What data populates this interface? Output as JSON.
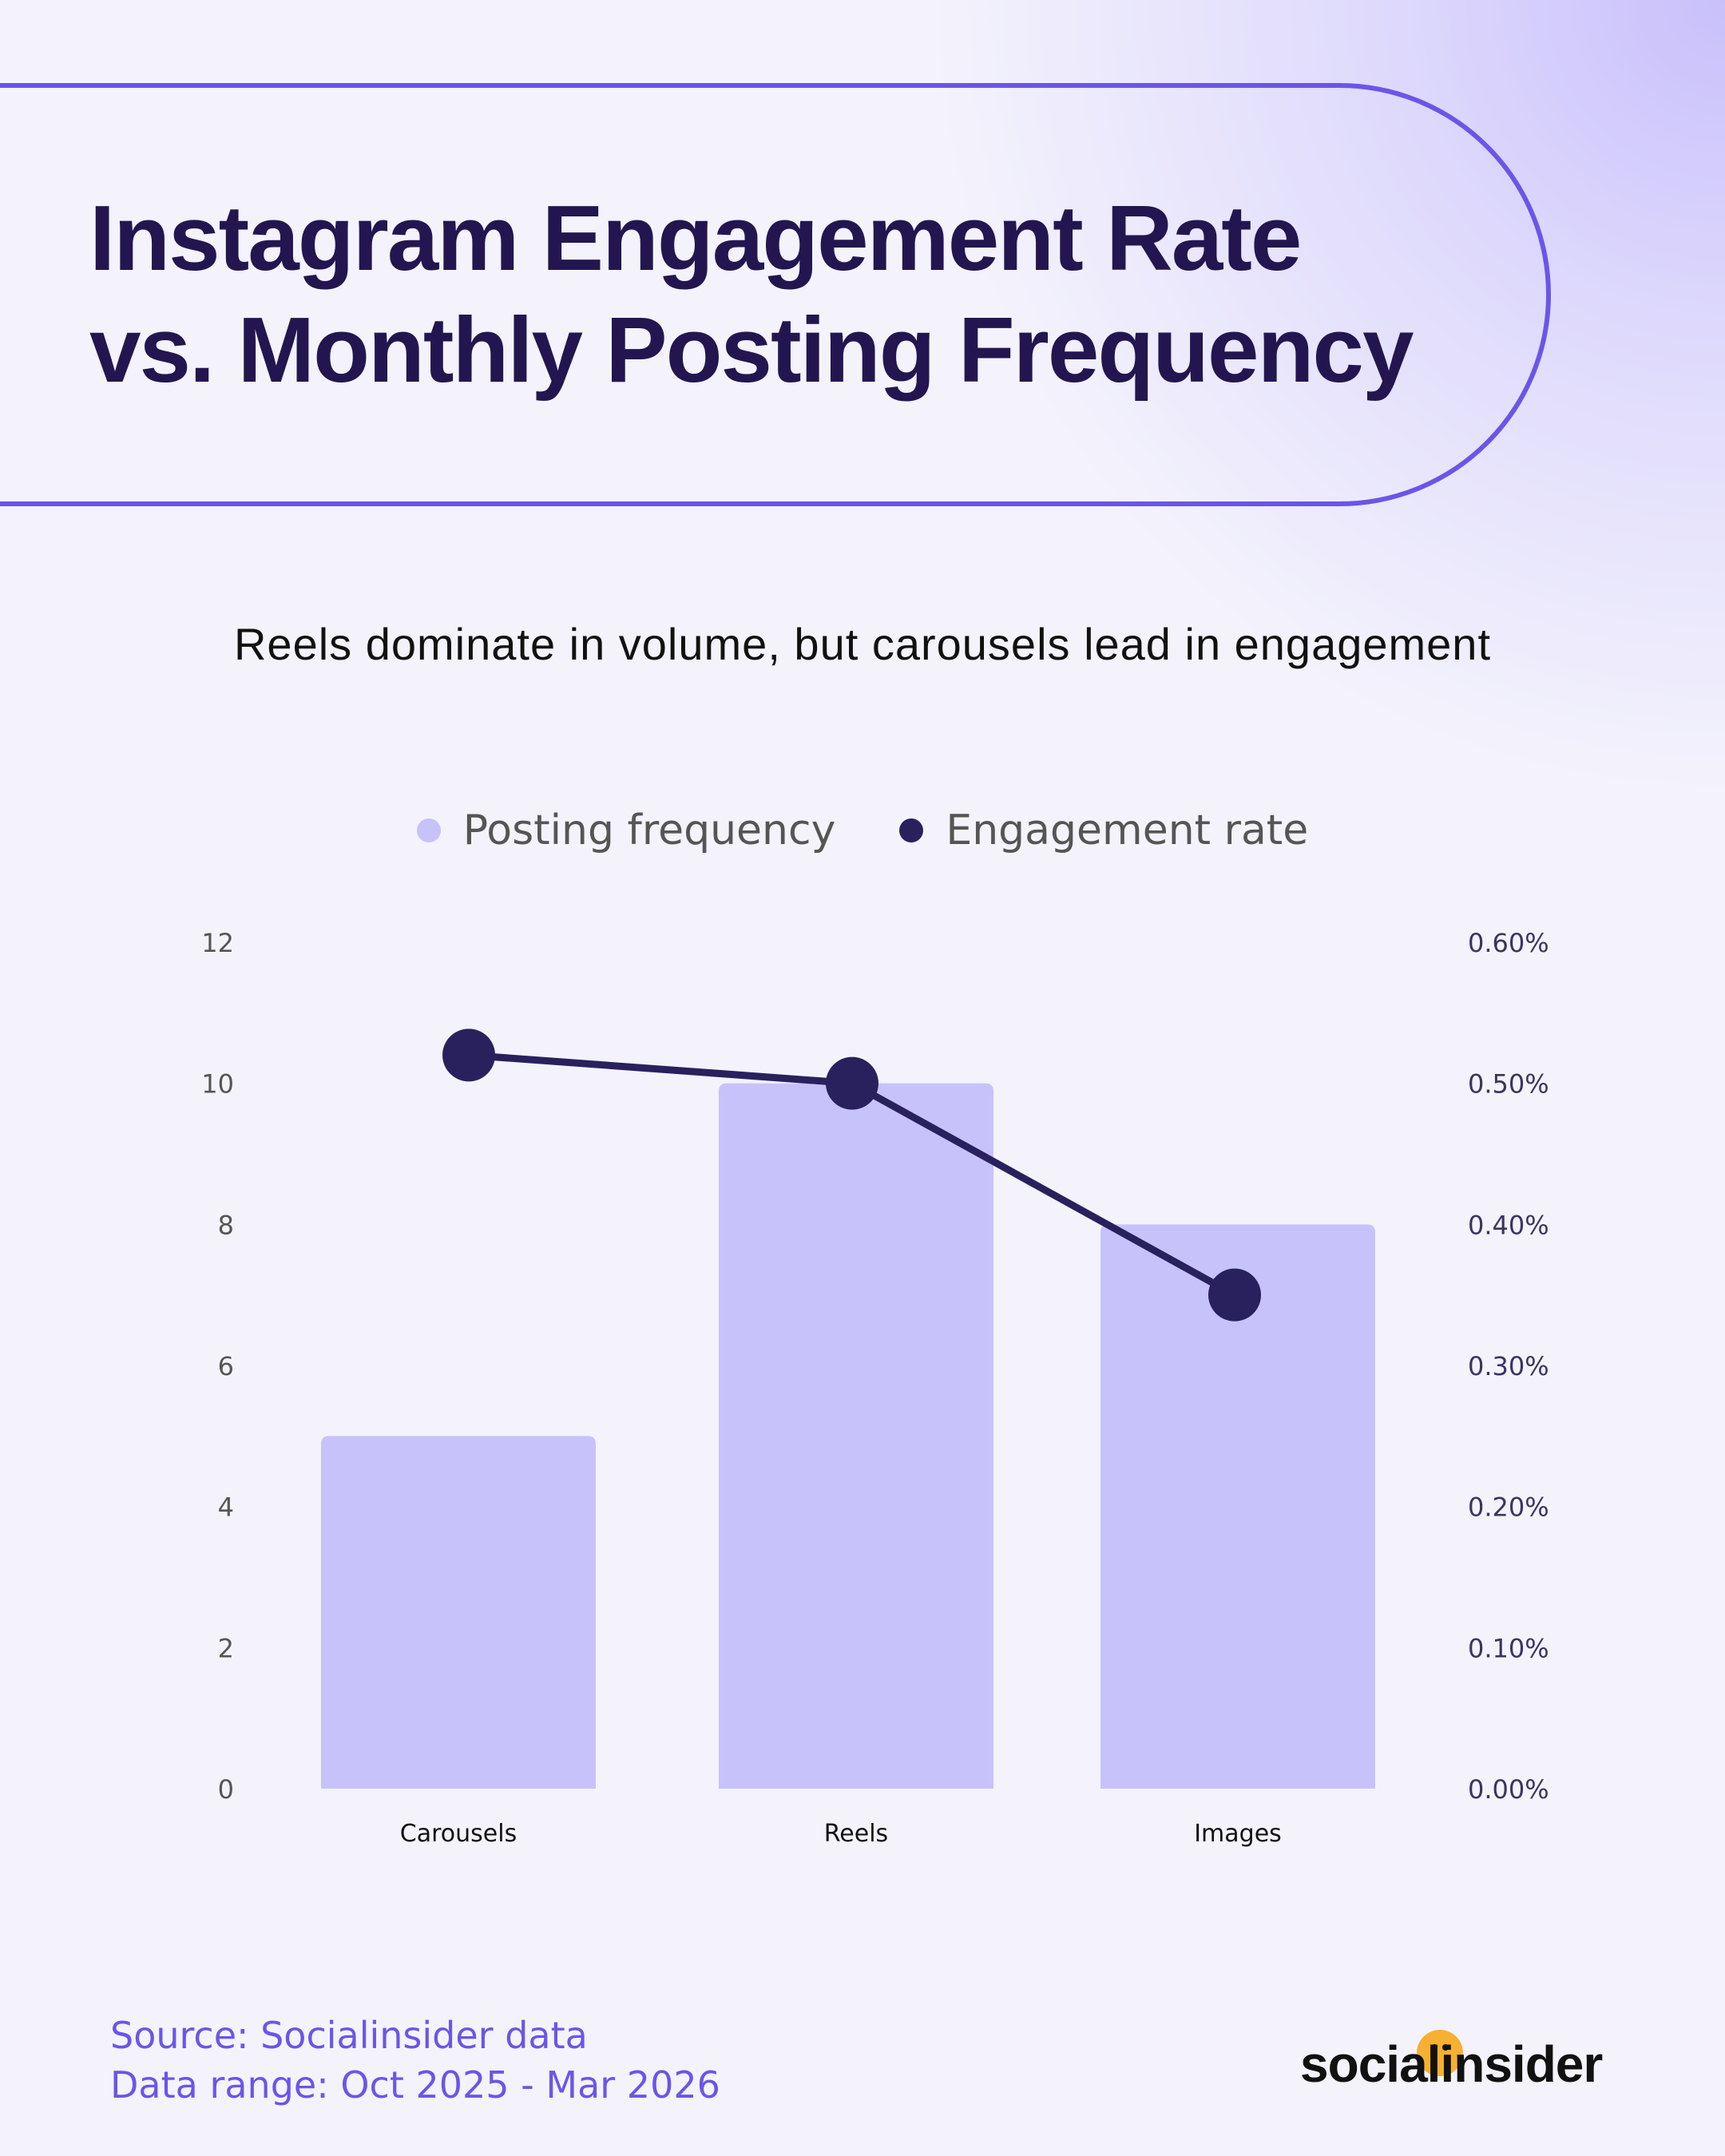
{
  "header": {
    "title_line1": "Instagram Engagement Rate",
    "title_line2": "vs. Monthly Posting Frequency",
    "subtitle": "Reels dominate in volume, but carousels lead in engagement"
  },
  "colors": {
    "bar": "#c8c2fb",
    "line": "#29215e",
    "accent": "#6b55e8",
    "title": "#231650",
    "left_tick": "#555555",
    "right_tick": "#3b3461",
    "logo_dot": "#f6b032"
  },
  "chart_data": {
    "type": "bar",
    "categories": [
      "Carousels",
      "Reels",
      "Images"
    ],
    "series": [
      {
        "name": "Posting frequency",
        "type": "bar",
        "axis": "left",
        "values": [
          5,
          10,
          8
        ]
      },
      {
        "name": "Engagement rate",
        "type": "line",
        "axis": "right",
        "values": [
          0.52,
          0.5,
          0.35
        ]
      }
    ],
    "y_left": {
      "min": 0,
      "max": 12,
      "ticks": [
        0,
        2,
        4,
        6,
        8,
        10,
        12
      ],
      "tick_labels": [
        "0",
        "2",
        "4",
        "6",
        "8",
        "10",
        "12"
      ]
    },
    "y_right": {
      "min": 0,
      "max": 0.6,
      "ticks": [
        0,
        0.1,
        0.2,
        0.3,
        0.4,
        0.5,
        0.6
      ],
      "tick_labels": [
        "0.00%",
        "0.10%",
        "0.20%",
        "0.30%",
        "0.40%",
        "0.50%",
        "0.60%"
      ]
    },
    "legend_position": "top-center",
    "grid": false
  },
  "footer": {
    "source": "Source: Socialinsider data",
    "range": "Data range: Oct 2025 - Mar 2026",
    "logo_text": "socialinsider"
  }
}
